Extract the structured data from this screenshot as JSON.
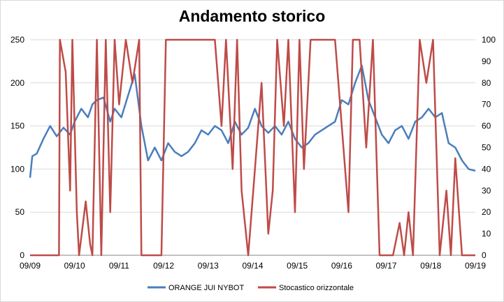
{
  "chart_data": {
    "type": "line",
    "title": "Andamento storico",
    "x_ticks": [
      "09/09",
      "09/10",
      "09/11",
      "09/12",
      "09/13",
      "09/14",
      "09/15",
      "09/16",
      "09/17",
      "09/18",
      "09/19"
    ],
    "y_left": {
      "lim": [
        0,
        250
      ],
      "ticks": [
        "0",
        "50",
        "100",
        "150",
        "200",
        "250"
      ]
    },
    "y_right": {
      "lim": [
        0,
        100
      ],
      "ticks": [
        "0",
        "10",
        "20",
        "30",
        "40",
        "50",
        "60",
        "70",
        "80",
        "90",
        "100"
      ]
    },
    "grid": "horizontal",
    "legend_position": "bottom",
    "series": [
      {
        "name": "ORANGE JUI NYBOT",
        "axis": "left",
        "color": "#4a7ebb",
        "x": [
          2009.7,
          2009.75,
          2009.85,
          2010.0,
          2010.15,
          2010.3,
          2010.45,
          2010.6,
          2010.7,
          2010.85,
          2011.0,
          2011.1,
          2011.2,
          2011.35,
          2011.5,
          2011.6,
          2011.75,
          2011.9,
          2012.05,
          2012.2,
          2012.35,
          2012.5,
          2012.65,
          2012.8,
          2012.95,
          2013.1,
          2013.25,
          2013.4,
          2013.55,
          2013.7,
          2013.85,
          2014.0,
          2014.15,
          2014.3,
          2014.45,
          2014.6,
          2014.75,
          2014.9,
          2015.05,
          2015.2,
          2015.35,
          2015.5,
          2015.65,
          2015.8,
          2015.95,
          2016.1,
          2016.25,
          2016.4,
          2016.55,
          2016.7,
          2016.85,
          2017.0,
          2017.15,
          2017.3,
          2017.45,
          2017.6,
          2017.75,
          2017.9,
          2018.05,
          2018.2,
          2018.35,
          2018.5,
          2018.65,
          2018.8,
          2018.95,
          2019.1,
          2019.25,
          2019.4,
          2019.55,
          2019.7
        ],
        "y": [
          90,
          115,
          118,
          135,
          150,
          138,
          148,
          140,
          155,
          170,
          160,
          175,
          180,
          183,
          155,
          170,
          160,
          185,
          210,
          150,
          110,
          125,
          110,
          130,
          120,
          115,
          120,
          130,
          145,
          140,
          150,
          145,
          130,
          155,
          140,
          148,
          170,
          150,
          142,
          150,
          140,
          155,
          135,
          125,
          130,
          140,
          145,
          150,
          155,
          180,
          175,
          200,
          220,
          180,
          160,
          140,
          130,
          145,
          150,
          135,
          155,
          160,
          170,
          160,
          165,
          130,
          125,
          110,
          100,
          98
        ]
      },
      {
        "name": "Stocastico orizzontale",
        "axis": "right",
        "color": "#be4b48",
        "x": [
          2009.7,
          2010.35,
          2010.37,
          2010.5,
          2010.6,
          2010.65,
          2010.75,
          2010.8,
          2010.95,
          2011.05,
          2011.1,
          2011.2,
          2011.3,
          2011.4,
          2011.5,
          2011.6,
          2011.7,
          2011.85,
          2012.0,
          2012.15,
          2012.2,
          2012.65,
          2012.75,
          2013.2,
          2013.4,
          2013.6,
          2013.7,
          2013.85,
          2014.0,
          2014.1,
          2014.25,
          2014.35,
          2014.45,
          2014.6,
          2014.75,
          2014.9,
          2015.05,
          2015.15,
          2015.25,
          2015.4,
          2015.5,
          2015.65,
          2015.75,
          2015.85,
          2016.0,
          2016.1,
          2016.25,
          2016.4,
          2016.55,
          2016.7,
          2016.85,
          2016.95,
          2017.1,
          2017.25,
          2017.4,
          2017.55,
          2017.7,
          2017.85,
          2018.0,
          2018.1,
          2018.2,
          2018.3,
          2018.45,
          2018.6,
          2018.75,
          2018.9,
          2019.05,
          2019.15,
          2019.25,
          2019.4,
          2019.55,
          2019.7
        ],
        "y": [
          0,
          0,
          100,
          85,
          30,
          100,
          20,
          0,
          25,
          5,
          0,
          100,
          0,
          100,
          20,
          100,
          70,
          100,
          80,
          100,
          0,
          0,
          100,
          100,
          100,
          100,
          100,
          100,
          60,
          100,
          40,
          100,
          30,
          0,
          40,
          80,
          10,
          30,
          100,
          60,
          100,
          20,
          100,
          40,
          100,
          100,
          100,
          100,
          100,
          60,
          20,
          100,
          100,
          50,
          100,
          0,
          0,
          0,
          15,
          0,
          20,
          0,
          100,
          80,
          100,
          0,
          30,
          0,
          45,
          0,
          0,
          0
        ]
      }
    ]
  }
}
